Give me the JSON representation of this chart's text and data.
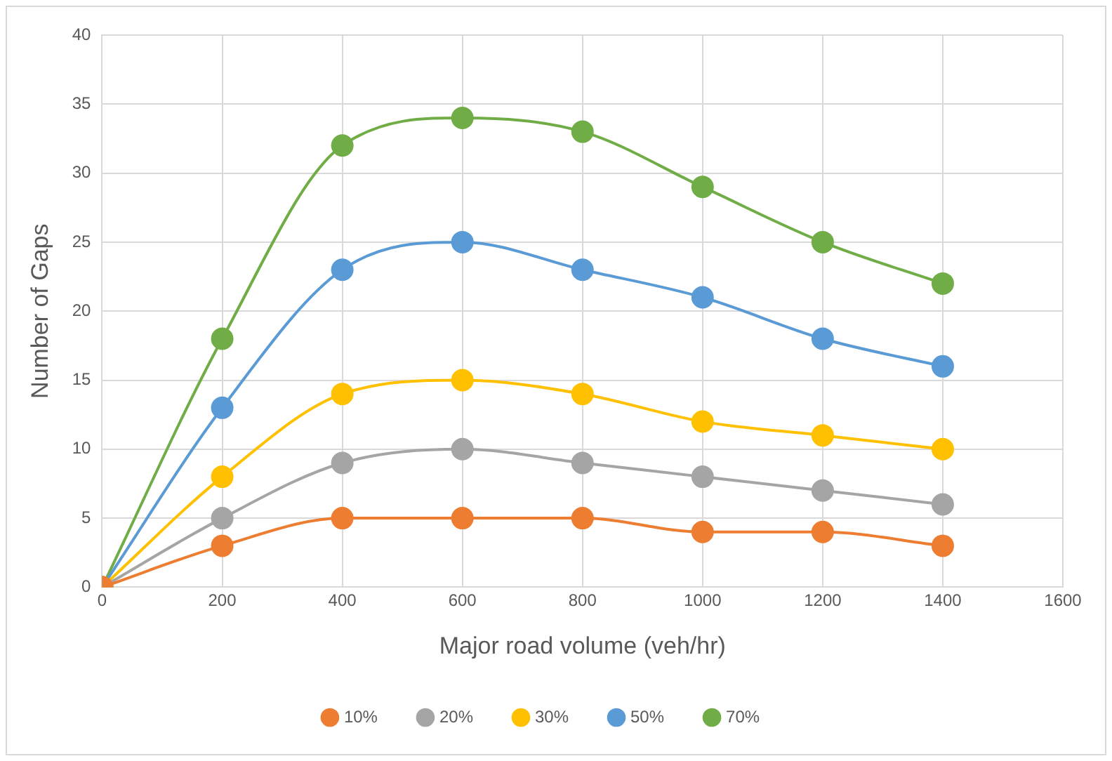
{
  "chart_data": {
    "type": "line",
    "xlabel": "Major road volume (veh/hr)",
    "ylabel": "Number of Gaps",
    "x": [
      0,
      200,
      400,
      600,
      800,
      1000,
      1200,
      1400
    ],
    "series": [
      {
        "name": "10%",
        "color": "#ed7d31",
        "values": [
          0,
          3,
          5,
          5,
          5,
          4,
          4,
          3
        ]
      },
      {
        "name": "20%",
        "color": "#a5a5a5",
        "values": [
          0,
          5,
          9,
          10,
          9,
          8,
          7,
          6
        ]
      },
      {
        "name": "30%",
        "color": "#ffc000",
        "values": [
          0,
          8,
          14,
          15,
          14,
          12,
          11,
          10
        ]
      },
      {
        "name": "50%",
        "color": "#5b9bd5",
        "values": [
          0,
          13,
          23,
          25,
          23,
          21,
          18,
          16
        ]
      },
      {
        "name": "70%",
        "color": "#70ad47",
        "values": [
          0,
          18,
          32,
          34,
          33,
          29,
          25,
          22
        ]
      }
    ],
    "xlim": [
      0,
      1600
    ],
    "xticks": [
      0,
      200,
      400,
      600,
      800,
      1000,
      1200,
      1400,
      1600
    ],
    "ylim": [
      0,
      40
    ],
    "yticks": [
      0,
      5,
      10,
      15,
      20,
      25,
      30,
      35,
      40
    ],
    "grid": true,
    "legend": "bottom",
    "marker": "circle",
    "line_style": "solid"
  }
}
